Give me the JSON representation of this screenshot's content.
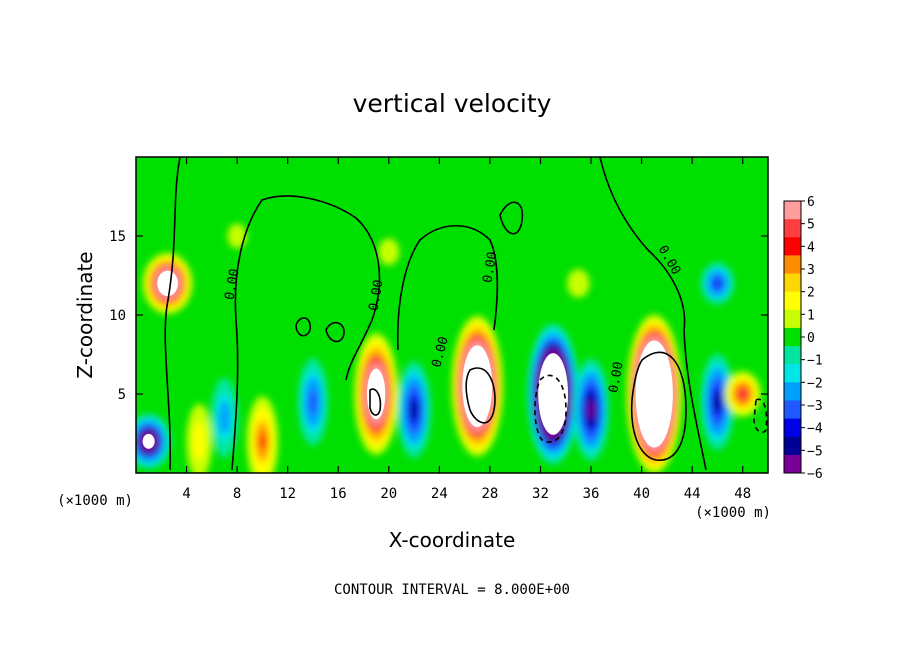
{
  "chart_data": {
    "type": "heatmap",
    "title": "vertical velocity",
    "xlabel": "X-coordinate",
    "ylabel": "Z-coordinate",
    "x_unit": "(×1000 m)",
    "z_unit": "(×1000 m)",
    "xlim": [
      0,
      50
    ],
    "zlim": [
      0,
      20
    ],
    "x_ticks": [
      4,
      8,
      12,
      16,
      20,
      24,
      28,
      32,
      36,
      40,
      44,
      48
    ],
    "z_ticks": [
      5,
      10,
      15
    ],
    "colorbar": {
      "ticks": [
        6,
        5,
        4,
        3,
        2,
        1,
        0,
        -1,
        -2,
        -3,
        -4,
        -5,
        -6
      ],
      "range": [
        -6,
        6
      ],
      "colors": [
        "#ff9c9c",
        "#ff3f3f",
        "#ff0000",
        "#ff8c00",
        "#ffd700",
        "#ffff00",
        "#c8ff00",
        "#00e000",
        "#00e6a0",
        "#00e6e6",
        "#00a0ff",
        "#1e5aff",
        "#0000e6",
        "#000096",
        "#780096"
      ]
    },
    "contour_label": "0.00",
    "contour_label_count": 6,
    "footer": "CONTOUR INTERVAL = 8.000E+00",
    "features": [
      {
        "x": 2.5,
        "z": 12,
        "w": 10,
        "shape": "blob"
      },
      {
        "x": 1,
        "z": 2,
        "w": -8,
        "shape": "blob"
      },
      {
        "x": 5,
        "z": 2,
        "w": 2,
        "shape": "column"
      },
      {
        "x": 7,
        "z": 3.5,
        "w": -2.5,
        "shape": "column"
      },
      {
        "x": 10,
        "z": 2,
        "w": 4,
        "shape": "column"
      },
      {
        "x": 14,
        "z": 4.5,
        "w": -3.5,
        "shape": "column"
      },
      {
        "x": 19,
        "z": 5,
        "w": 10,
        "shape": "column"
      },
      {
        "x": 22,
        "z": 4,
        "w": -5,
        "shape": "column"
      },
      {
        "x": 27,
        "z": 5.5,
        "w": 14,
        "shape": "column"
      },
      {
        "x": 33,
        "z": 5,
        "w": -14,
        "shape": "column"
      },
      {
        "x": 36,
        "z": 4,
        "w": -6,
        "shape": "column"
      },
      {
        "x": 41,
        "z": 5,
        "w": 18,
        "shape": "column"
      },
      {
        "x": 46,
        "z": 4.5,
        "w": -5,
        "shape": "column"
      },
      {
        "x": 48,
        "z": 5,
        "w": 5,
        "shape": "blob"
      },
      {
        "x": 46,
        "z": 12,
        "w": -4,
        "shape": "blob"
      },
      {
        "x": 35,
        "z": 12,
        "w": 1.2,
        "shape": "blob"
      },
      {
        "x": 20,
        "z": 14,
        "w": 1,
        "shape": "blob"
      },
      {
        "x": 8,
        "z": 15,
        "w": 0.8,
        "shape": "blob"
      }
    ]
  }
}
